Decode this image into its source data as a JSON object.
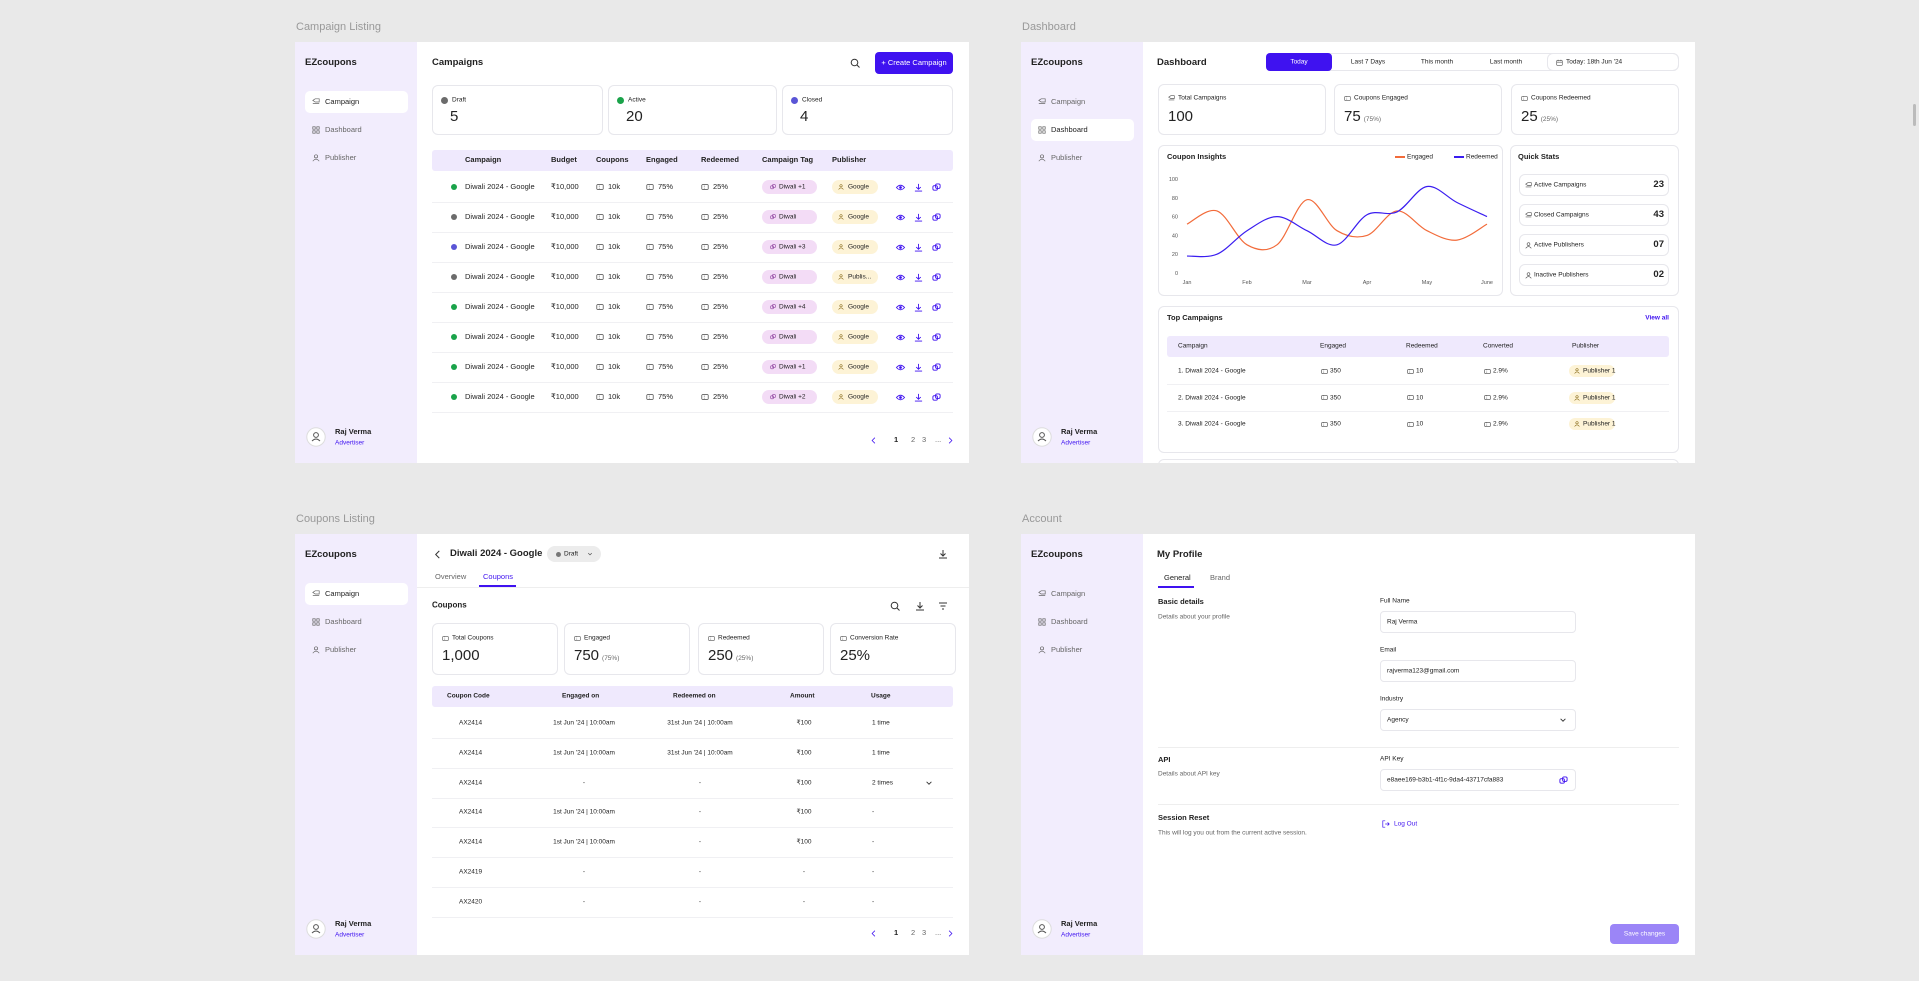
{
  "frames": {
    "campaign_listing": "Campaign Listing",
    "dashboard": "Dashboard",
    "coupons_listing": "Coupons Listing",
    "account": "Account"
  },
  "sidebar": {
    "brand": "EZcoupons",
    "nav": [
      "Campaign",
      "Dashboard",
      "Publisher"
    ],
    "user": "Raj Verma",
    "role": "Advertiser"
  },
  "campaigns": {
    "title": "Campaigns",
    "create": "+ Create Campaign",
    "stats": [
      {
        "label": "Draft",
        "value": 5,
        "color": "#6b6b6b"
      },
      {
        "label": "Active",
        "value": 20,
        "color": "#1aa34a"
      },
      {
        "label": "Closed",
        "value": 4,
        "color": "#5a55d6"
      }
    ],
    "columns": [
      "Campaign",
      "Budget",
      "Coupons",
      "Engaged",
      "Redeemed",
      "Campaign Tag",
      "Publisher"
    ],
    "rows": [
      {
        "color": "#1aa34a",
        "name": "Diwali 2024 - Google",
        "budget": "₹10,000",
        "coupons": "10k",
        "engaged": "75%",
        "redeemed": "25%",
        "tag": "Diwali +1",
        "publisher": "Google"
      },
      {
        "color": "#6b6b6b",
        "name": "Diwali 2024 - Google",
        "budget": "₹10,000",
        "coupons": "10k",
        "engaged": "75%",
        "redeemed": "25%",
        "tag": "Diwali",
        "publisher": "Google"
      },
      {
        "color": "#5a55d6",
        "name": "Diwali 2024 - Google",
        "budget": "₹10,000",
        "coupons": "10k",
        "engaged": "75%",
        "redeemed": "25%",
        "tag": "Diwali +3",
        "publisher": "Google"
      },
      {
        "color": "#6b6b6b",
        "name": "Diwali 2024 - Google",
        "budget": "₹10,000",
        "coupons": "10k",
        "engaged": "75%",
        "redeemed": "25%",
        "tag": "Diwali",
        "publisher": "Publis..."
      },
      {
        "color": "#1aa34a",
        "name": "Diwali 2024 - Google",
        "budget": "₹10,000",
        "coupons": "10k",
        "engaged": "75%",
        "redeemed": "25%",
        "tag": "Diwali +4",
        "publisher": "Google"
      },
      {
        "color": "#1aa34a",
        "name": "Diwali 2024 - Google",
        "budget": "₹10,000",
        "coupons": "10k",
        "engaged": "75%",
        "redeemed": "25%",
        "tag": "Diwali",
        "publisher": "Google"
      },
      {
        "color": "#1aa34a",
        "name": "Diwali 2024 - Google",
        "budget": "₹10,000",
        "coupons": "10k",
        "engaged": "75%",
        "redeemed": "25%",
        "tag": "Diwali +1",
        "publisher": "Google"
      },
      {
        "color": "#1aa34a",
        "name": "Diwali 2024 - Google",
        "budget": "₹10,000",
        "coupons": "10k",
        "engaged": "75%",
        "redeemed": "25%",
        "tag": "Diwali +2",
        "publisher": "Google"
      }
    ],
    "pages": [
      "1",
      "2",
      "3",
      "..."
    ]
  },
  "dashboard": {
    "title": "Dashboard",
    "ranges": [
      "Today",
      "Last 7 Days",
      "This month",
      "Last month"
    ],
    "date": "Today: 18th Jun '24",
    "stats": [
      {
        "label": "Total Campaigns",
        "value": 100
      },
      {
        "label": "Coupons Engaged",
        "value": 75,
        "note": "(75%)"
      },
      {
        "label": "Coupons Redeemed",
        "value": 25,
        "note": "(25%)"
      }
    ],
    "insights": {
      "type": "line",
      "title": "Coupon Insights",
      "x": [
        0,
        0.5,
        1,
        1.5,
        2,
        2.5,
        3,
        3.5,
        4,
        4.5,
        5
      ],
      "xlim": [
        0,
        5
      ],
      "xticks": [
        {
          "value": 0,
          "label": "Jan"
        },
        {
          "value": 1,
          "label": "Feb"
        },
        {
          "value": 2,
          "label": "Mar"
        },
        {
          "value": 3,
          "label": "Apr"
        },
        {
          "value": 4,
          "label": "May"
        },
        {
          "value": 5,
          "label": "June"
        }
      ],
      "ylim": [
        0,
        100
      ],
      "yticks": [
        0,
        20,
        40,
        60,
        80,
        100
      ],
      "grid": false,
      "series": [
        {
          "name": "Engaged",
          "color": "#f26b3a",
          "values": [
            52,
            66,
            30,
            30,
            78,
            45,
            40,
            66,
            45,
            35,
            52
          ]
        },
        {
          "name": "Redeemed",
          "color": "#3a1df0",
          "values": [
            18,
            20,
            45,
            60,
            45,
            30,
            62,
            65,
            92,
            75,
            60
          ]
        }
      ]
    },
    "quick": {
      "title": "Quick Stats",
      "items": [
        {
          "label": "Active Campaigns",
          "value": "23"
        },
        {
          "label": "Closed Campaigns",
          "value": "43"
        },
        {
          "label": "Active Publishers",
          "value": "07"
        },
        {
          "label": "Inactive Publishers",
          "value": "02"
        }
      ]
    },
    "top": {
      "title": "Top Campaigns",
      "view_all": "View all",
      "columns": [
        "Campaign",
        "Engaged",
        "Redeemed",
        "Converted",
        "Publisher"
      ],
      "rows": [
        [
          "1. Diwali 2024 - Google",
          "350",
          "10",
          "2.9%",
          "Publisher 1"
        ],
        [
          "2. Diwali 2024 - Google",
          "350",
          "10",
          "2.9%",
          "Publisher 1"
        ],
        [
          "3. Diwali 2024 - Google",
          "350",
          "10",
          "2.9%",
          "Publisher 1"
        ]
      ]
    }
  },
  "coupons": {
    "campaign": "Diwali 2024 - Google",
    "status": "Draft",
    "tabs": [
      "Overview",
      "Coupons"
    ],
    "section": "Coupons",
    "stats": [
      {
        "label": "Total Coupons",
        "value": "1,000"
      },
      {
        "label": "Engaged",
        "value": "750",
        "note": "(75%)"
      },
      {
        "label": "Redeemed",
        "value": "250",
        "note": "(25%)"
      },
      {
        "label": "Conversion Rate",
        "value": "25%"
      }
    ],
    "columns": [
      "Coupon Code",
      "Engaged on",
      "Redeemed on",
      "Amount",
      "Usage"
    ],
    "rows": [
      [
        "AX2414",
        "1st Jun '24 | 10:00am",
        "31st Jun '24 | 10:00am",
        "₹100",
        "1 time"
      ],
      [
        "AX2414",
        "1st Jun '24 | 10:00am",
        "31st Jun '24 | 10:00am",
        "₹100",
        "1 time"
      ],
      [
        "AX2414",
        "-",
        "-",
        "₹100",
        "2 times"
      ],
      [
        "AX2414",
        "1st Jun '24 | 10:00am",
        "-",
        "₹100",
        "-"
      ],
      [
        "AX2414",
        "1st Jun '24 | 10:00am",
        "-",
        "₹100",
        "-"
      ],
      [
        "AX2419",
        "-",
        "-",
        "-",
        "-"
      ],
      [
        "AX2420",
        "-",
        "-",
        "-",
        "-"
      ]
    ],
    "pages": [
      "1",
      "2",
      "3",
      "..."
    ]
  },
  "account": {
    "title": "My Profile",
    "tabs": [
      "General",
      "Brand"
    ],
    "basic": {
      "title": "Basic details",
      "sub": "Details about your profile"
    },
    "fields": [
      {
        "label": "Full Name",
        "value": "Raj Verma"
      },
      {
        "label": "Email",
        "value": "rajverma123@gmail.com"
      },
      {
        "label": "Industry",
        "value": "Agency"
      }
    ],
    "api": {
      "title": "API",
      "sub": "Details about API key",
      "label": "API Key",
      "value": "e8aee169-b3b1-4f1c-9da4-43717cfa883"
    },
    "session": {
      "title": "Session Reset",
      "sub": "This will log you out from the current active session.",
      "action": "Log Out"
    },
    "save": "Save changes"
  }
}
